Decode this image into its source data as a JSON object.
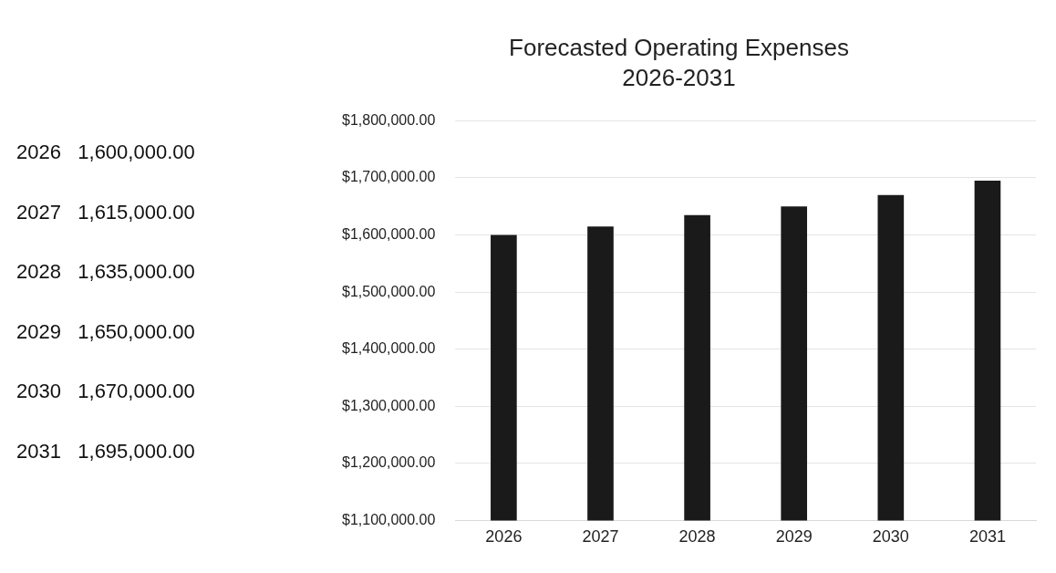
{
  "chart_data": {
    "type": "bar",
    "title": "Forecasted Operating Expenses",
    "subtitle": "2026-2031",
    "categories": [
      "2026",
      "2027",
      "2028",
      "2029",
      "2030",
      "2031"
    ],
    "values": [
      1600000,
      1615000,
      1635000,
      1650000,
      1670000,
      1695000
    ],
    "annotations": [
      "2026   1,600,000.00",
      "2027   1,615,000.00",
      "2028   1,635,000.00",
      "2029   1,650,000.00",
      "2030   1,670,000.00",
      "2031   1,695,000.00"
    ],
    "color": "#1a1a1a",
    "ylim": [
      1100000,
      1800000
    ],
    "yticks": [
      {
        "value": 1100000,
        "label": "$1,100,000.00"
      },
      {
        "value": 1200000,
        "label": "$1,200,000.00"
      },
      {
        "value": 1300000,
        "label": "$1,300,000.00"
      },
      {
        "value": 1400000,
        "label": "$1,400,000.00"
      },
      {
        "value": 1500000,
        "label": "$1,500,000.00"
      },
      {
        "value": 1600000,
        "label": "$1,600,000.00"
      },
      {
        "value": 1700000,
        "label": "$1,700,000.00"
      },
      {
        "value": 1800000,
        "label": "$1,800,000.00"
      }
    ],
    "grid": "y",
    "legend": false
  }
}
